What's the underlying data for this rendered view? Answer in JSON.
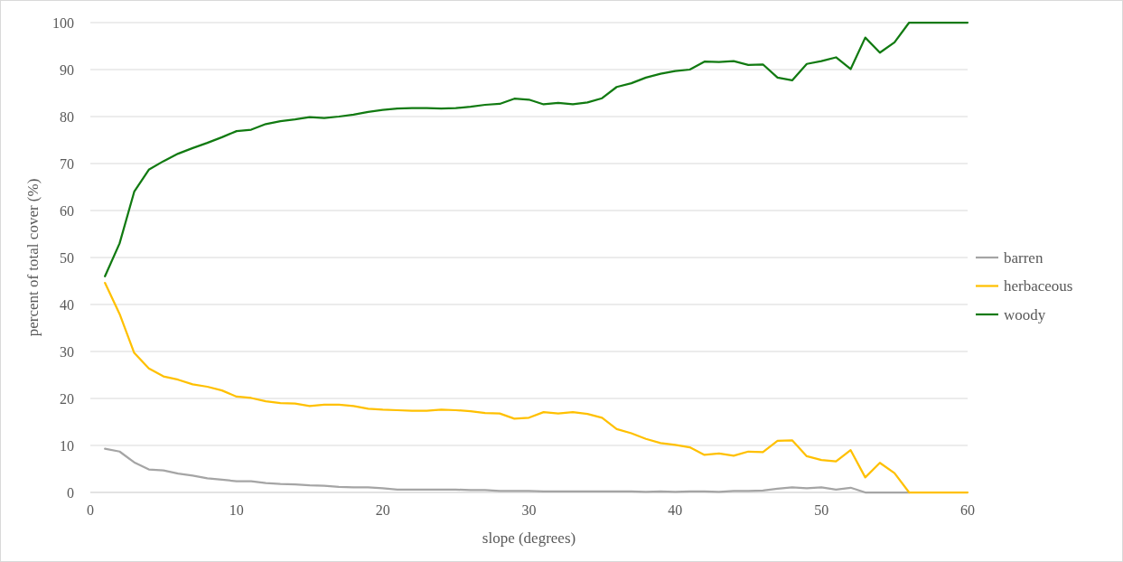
{
  "chart_data": {
    "type": "line",
    "xlabel": "slope (degrees)",
    "ylabel": "percent of total cover (%)",
    "x": [
      1,
      2,
      3,
      4,
      5,
      6,
      7,
      8,
      9,
      10,
      11,
      12,
      13,
      14,
      15,
      16,
      17,
      18,
      19,
      20,
      21,
      22,
      23,
      24,
      25,
      26,
      27,
      28,
      29,
      30,
      31,
      32,
      33,
      34,
      35,
      36,
      37,
      38,
      39,
      40,
      41,
      42,
      43,
      44,
      45,
      46,
      47,
      48,
      49,
      50,
      51,
      52,
      53,
      54,
      55,
      56,
      57,
      58,
      59,
      60
    ],
    "series": [
      {
        "name": "barren",
        "color": "#a5a5a5",
        "values": [
          9.3,
          8.7,
          6.4,
          4.9,
          4.7,
          4.0,
          3.6,
          3.0,
          2.7,
          2.4,
          2.4,
          2.0,
          1.8,
          1.7,
          1.5,
          1.4,
          1.2,
          1.1,
          1.1,
          0.9,
          0.6,
          0.6,
          0.6,
          0.6,
          0.6,
          0.5,
          0.5,
          0.3,
          0.3,
          0.3,
          0.2,
          0.2,
          0.2,
          0.2,
          0.2,
          0.2,
          0.2,
          0.1,
          0.2,
          0.1,
          0.2,
          0.2,
          0.1,
          0.3,
          0.3,
          0.4,
          0.8,
          1.1,
          0.9,
          1.1,
          0.6,
          1.0,
          0,
          0,
          0,
          0,
          null,
          null,
          null,
          null
        ]
      },
      {
        "name": "herbaceous",
        "color": "#ffc000",
        "values": [
          44.6,
          38,
          29.7,
          26.4,
          24.7,
          24.0,
          23.0,
          22.5,
          21.7,
          20.4,
          20.1,
          19.4,
          19.0,
          18.9,
          18.4,
          18.7,
          18.7,
          18.4,
          17.8,
          17.6,
          17.5,
          17.4,
          17.4,
          17.6,
          17.5,
          17.3,
          16.9,
          16.8,
          15.7,
          15.9,
          17.1,
          16.8,
          17.1,
          16.7,
          15.9,
          13.5,
          12.6,
          11.4,
          10.5,
          10.1,
          9.6,
          8.0,
          8.3,
          7.8,
          8.7,
          8.6,
          11.0,
          11.1,
          7.7,
          6.9,
          6.6,
          9.0,
          3.2,
          6.3,
          4.1,
          0,
          0,
          0,
          0,
          0
        ]
      },
      {
        "name": "woody",
        "color": "#117a11",
        "values": [
          46,
          53,
          64,
          68.7,
          70.5,
          72.1,
          73.3,
          74.4,
          75.6,
          76.9,
          77.2,
          78.4,
          79.0,
          79.4,
          79.9,
          79.7,
          80.0,
          80.4,
          81.0,
          81.4,
          81.7,
          81.8,
          81.8,
          81.7,
          81.8,
          82.1,
          82.5,
          82.7,
          83.8,
          83.6,
          82.6,
          82.9,
          82.6,
          83.0,
          83.9,
          86.3,
          87.1,
          88.3,
          89.1,
          89.7,
          90.0,
          91.7,
          91.6,
          91.8,
          91.0,
          91.1,
          88.3,
          87.7,
          91.2,
          91.8,
          92.6,
          90.1,
          96.8,
          93.6,
          95.8,
          100,
          100,
          100,
          100,
          100
        ]
      }
    ],
    "xlim": [
      0,
      60
    ],
    "xticks": [
      0,
      10,
      20,
      30,
      40,
      50,
      60
    ],
    "ylim": [
      0,
      100
    ],
    "yticks": [
      0,
      10,
      20,
      30,
      40,
      50,
      60,
      70,
      80,
      90,
      100
    ],
    "grid": "y",
    "legend": "right",
    "marker": "none",
    "line_style": "solid"
  }
}
